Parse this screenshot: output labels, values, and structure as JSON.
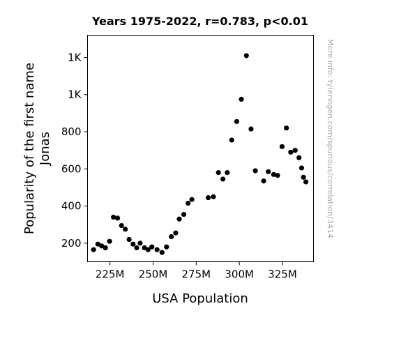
{
  "chart_data": {
    "type": "scatter",
    "title": "Years 1975-2022, r=0.783, p<0.01",
    "xlabel": "USA Population",
    "ylabel_lines": [
      "Popularity of the first name",
      "Jonas"
    ],
    "watermark": "More info: tylervigen.com/spurious/correlation/3414",
    "xlim": [
      212,
      343
    ],
    "ylim": [
      100,
      1320
    ],
    "x_ticks": [
      {
        "value": 225,
        "label": "225M"
      },
      {
        "value": 250,
        "label": "250M"
      },
      {
        "value": 275,
        "label": "275M"
      },
      {
        "value": 300,
        "label": "300M"
      },
      {
        "value": 325,
        "label": "325M"
      }
    ],
    "y_ticks": [
      {
        "value": 200,
        "label": "200"
      },
      {
        "value": 400,
        "label": "400"
      },
      {
        "value": 600,
        "label": "600"
      },
      {
        "value": 800,
        "label": "800"
      },
      {
        "value": 1000,
        "label": "1K"
      },
      {
        "value": 1200,
        "label": "1K"
      }
    ],
    "point_color": "#000000",
    "points": [
      [
        215.5,
        165
      ],
      [
        218.0,
        195
      ],
      [
        220.2,
        185
      ],
      [
        222.4,
        175
      ],
      [
        224.8,
        210
      ],
      [
        227.0,
        340
      ],
      [
        229.4,
        335
      ],
      [
        231.7,
        295
      ],
      [
        233.9,
        275
      ],
      [
        236.1,
        220
      ],
      [
        238.4,
        195
      ],
      [
        240.5,
        175
      ],
      [
        242.5,
        200
      ],
      [
        245.0,
        175
      ],
      [
        247.1,
        165
      ],
      [
        249.3,
        180
      ],
      [
        252.3,
        165
      ],
      [
        255.2,
        150
      ],
      [
        257.8,
        180
      ],
      [
        260.6,
        235
      ],
      [
        263.1,
        255
      ],
      [
        265.2,
        330
      ],
      [
        267.8,
        355
      ],
      [
        270.3,
        415
      ],
      [
        272.5,
        435
      ],
      [
        282.0,
        445
      ],
      [
        285.0,
        450
      ],
      [
        287.9,
        580
      ],
      [
        290.5,
        545
      ],
      [
        293.0,
        580
      ],
      [
        295.6,
        755
      ],
      [
        298.5,
        855
      ],
      [
        301.2,
        975
      ],
      [
        304.1,
        1210
      ],
      [
        306.8,
        815
      ],
      [
        309.3,
        590
      ],
      [
        314.1,
        535
      ],
      [
        316.8,
        585
      ],
      [
        319.9,
        570
      ],
      [
        322.2,
        565
      ],
      [
        324.8,
        720
      ],
      [
        327.3,
        820
      ],
      [
        329.8,
        690
      ],
      [
        332.4,
        700
      ],
      [
        334.6,
        660
      ],
      [
        336.1,
        605
      ],
      [
        337.2,
        555
      ],
      [
        338.6,
        530
      ]
    ]
  }
}
